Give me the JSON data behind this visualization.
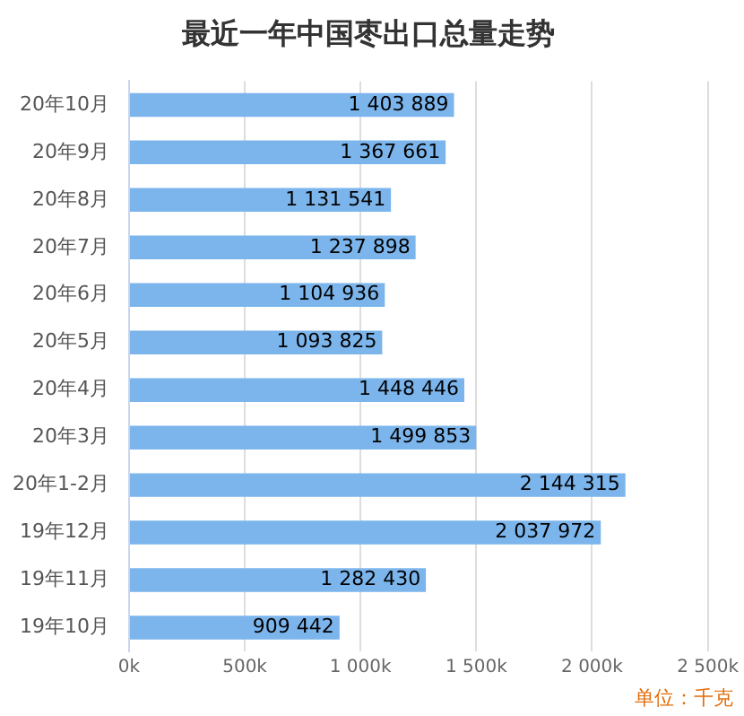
{
  "chart_data": {
    "type": "bar",
    "orientation": "horizontal",
    "title": "最近一年中国枣出口总量走势",
    "categories": [
      "20年10月",
      "20年9月",
      "20年8月",
      "20年7月",
      "20年6月",
      "20年5月",
      "20年4月",
      "20年3月",
      "20年1-2月",
      "19年12月",
      "19年11月",
      "19年10月"
    ],
    "values": [
      1403889,
      1367661,
      1131541,
      1237898,
      1104936,
      1093825,
      1448446,
      1499853,
      2144315,
      2037972,
      1282430,
      909442
    ],
    "value_labels": [
      "1 403 889",
      "1 367 661",
      "1 131 541",
      "1 237 898",
      "1 104 936",
      "1 093 825",
      "1 448 446",
      "1 499 853",
      "2 144 315",
      "2 037 972",
      "1 282 430",
      "909 442"
    ],
    "color": "#7cb5ec",
    "xlim": [
      0,
      2500000
    ],
    "xticks": [
      {
        "value": 0,
        "label": "0k"
      },
      {
        "value": 500000,
        "label": "500k"
      },
      {
        "value": 1000000,
        "label": "1 000k"
      },
      {
        "value": 1500000,
        "label": "1 500k"
      },
      {
        "value": 2000000,
        "label": "2 000k"
      },
      {
        "value": 2500000,
        "label": "2 500k"
      }
    ],
    "grid": "x",
    "annotations": [
      "单位：千克"
    ]
  }
}
